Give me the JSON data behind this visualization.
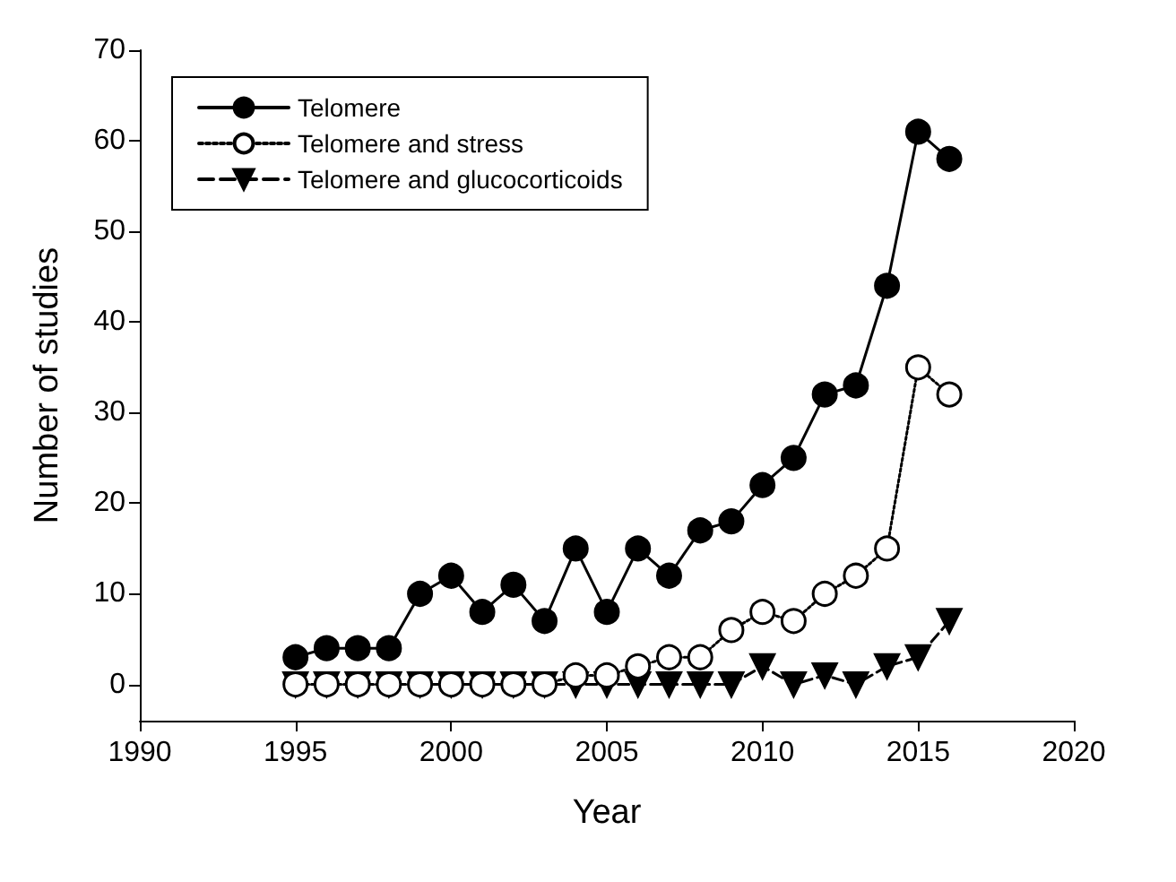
{
  "chart_data": {
    "type": "line",
    "xlabel": "Year",
    "ylabel": "Number of studies",
    "x": [
      1995,
      1996,
      1997,
      1998,
      1999,
      2000,
      2001,
      2002,
      2003,
      2004,
      2005,
      2006,
      2007,
      2008,
      2009,
      2010,
      2011,
      2012,
      2013,
      2014,
      2015,
      2016
    ],
    "series": [
      {
        "name": "Telomere",
        "color": "#000000",
        "marker": "circle",
        "line_style": "solid",
        "values": [
          3,
          4,
          4,
          4,
          10,
          12,
          8,
          11,
          7,
          15,
          8,
          15,
          12,
          17,
          18,
          22,
          25,
          32,
          33,
          44,
          61,
          58
        ]
      },
      {
        "name": "Telomere and stress",
        "color": "#000000",
        "marker": "circle",
        "line_style": "dotted",
        "colors": [
          "#ffffff",
          "#ffffff",
          "#ffffff",
          "#ffffff",
          "#ffffff",
          "#ffffff",
          "#ffffff",
          "#ffffff",
          "#ffffff",
          "#ffffff",
          "#ffffff",
          "#ffffff",
          "#ffffff",
          "#ffffff",
          "#ffffff",
          "#ffffff",
          "#ffffff",
          "#ffffff",
          "#ffffff",
          "#ffffff",
          "#ffffff",
          "#ffffff"
        ],
        "values": [
          0,
          0,
          0,
          0,
          0,
          0,
          0,
          0,
          0,
          1,
          1,
          2,
          3,
          3,
          6,
          8,
          7,
          10,
          12,
          15,
          35,
          32
        ]
      },
      {
        "name": "Telomere and glucocorticoids",
        "color": "#000000",
        "marker": "triangle",
        "line_style": "dashed",
        "values": [
          0,
          0,
          0,
          0,
          0,
          0,
          0,
          0,
          0,
          0,
          0,
          0,
          0,
          0,
          0,
          2,
          0,
          1,
          0,
          2,
          3,
          7
        ]
      }
    ],
    "xlim": [
      1990,
      2020
    ],
    "xticks": [
      1990,
      1995,
      2000,
      2005,
      2010,
      2015,
      2020
    ],
    "ylim": [
      -4,
      70
    ],
    "yticks": [
      0,
      10,
      20,
      30,
      40,
      50,
      60,
      70
    ],
    "grid": false,
    "legend": "top left"
  }
}
